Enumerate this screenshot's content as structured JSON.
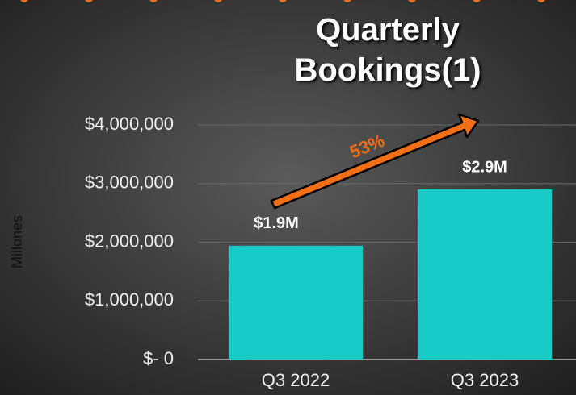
{
  "chart_data": {
    "type": "bar",
    "title": "Quarterly Bookings(1)",
    "y_axis_label": "Millones",
    "annotation": "53%",
    "categories": [
      "Q3 2022",
      "Q3 2023"
    ],
    "values": [
      1940000,
      2900000
    ],
    "value_labels": [
      "$1.9M",
      "$2.9M"
    ],
    "color": "#19cbc8",
    "ylim": [
      0,
      4000000
    ],
    "yticks": [
      {
        "value": 0,
        "label": "$- 0"
      },
      {
        "value": 1000000,
        "label": "$1,000,000"
      },
      {
        "value": 2000000,
        "label": "$2,000,000"
      },
      {
        "value": 3000000,
        "label": "$3,000,000"
      },
      {
        "value": 4000000,
        "label": "$4,000,000"
      }
    ],
    "grid": true
  }
}
